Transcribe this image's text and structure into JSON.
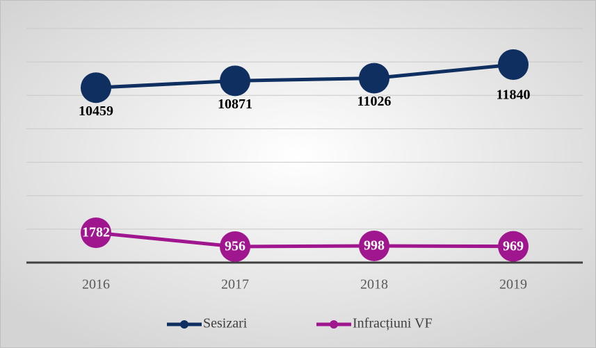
{
  "chart_data": {
    "type": "line",
    "categories": [
      "2016",
      "2017",
      "2018",
      "2019"
    ],
    "series": [
      {
        "name": "Sesizari",
        "color": "#0e2f5f",
        "values": [
          10459,
          10871,
          11026,
          11840
        ]
      },
      {
        "name": "Infracțiuni VF",
        "color": "#a0168e",
        "values": [
          1782,
          956,
          998,
          969
        ]
      }
    ],
    "ylim": [
      0,
      14000
    ],
    "yticks": [
      0,
      2000,
      4000,
      6000,
      8000,
      10000,
      12000,
      14000
    ],
    "grid": true
  }
}
